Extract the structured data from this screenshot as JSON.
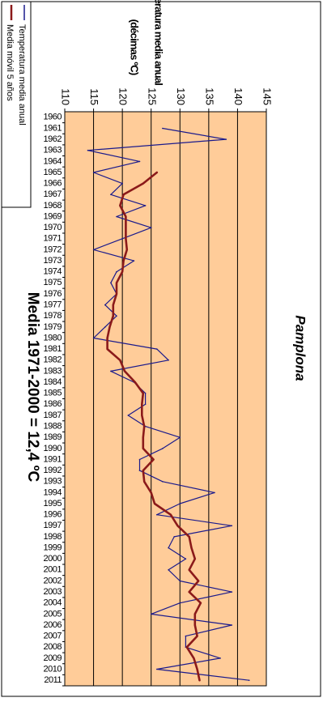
{
  "chart_data": {
    "type": "line",
    "title": "Temperatura media anual",
    "subtitle": "(décimas ºC)",
    "location_label": "Pamplona",
    "annotation": "Media 1971-2000 = 12,4 ºC",
    "xlabel": "",
    "ylabel": "",
    "ylim": [
      110,
      145
    ],
    "y_ticks": [
      110,
      115,
      120,
      125,
      130,
      135,
      140,
      145
    ],
    "grid": true,
    "orientation": "rotated-90-clockwise",
    "legend_position": "left",
    "colors": {
      "plot_background": "#ffcc99",
      "annual_series": "#1a1a8c",
      "moving_average_series": "#8b1a1a",
      "gridline": "#000000"
    },
    "categories": [
      "1960",
      "1961",
      "1962",
      "1963",
      "1964",
      "1965",
      "1966",
      "1967",
      "1968",
      "1969",
      "1970",
      "1971",
      "1972",
      "1973",
      "1974",
      "1975",
      "1976",
      "1977",
      "1978",
      "1979",
      "1980",
      "1981",
      "1982",
      "1983",
      "1984",
      "1985",
      "1986",
      "1987",
      "1988",
      "1989",
      "1990",
      "1991",
      "1992",
      "1993",
      "1994",
      "1995",
      "1996",
      "1997",
      "1998",
      "1999",
      "2000",
      "2001",
      "2002",
      "2003",
      "2004",
      "2005",
      "2006",
      "2007",
      "2008",
      "2009",
      "2010",
      "2011"
    ],
    "series": [
      {
        "name": "Temperatura media anual",
        "values": [
          null,
          127,
          138,
          114,
          123,
          115,
          120,
          118,
          124,
          119,
          125,
          120,
          115,
          122,
          119,
          118,
          119,
          117,
          119,
          117,
          115,
          126,
          128,
          118,
          122,
          124,
          124,
          121,
          124,
          130,
          127,
          123,
          123,
          127,
          136,
          130,
          126,
          139,
          129,
          128,
          131,
          128,
          130,
          139,
          130,
          125,
          139,
          131,
          131,
          137,
          126,
          142
        ]
      },
      {
        "name": "Media móvil 5 años",
        "values": [
          null,
          null,
          null,
          null,
          null,
          126,
          123.6,
          120.2,
          119.6,
          120.6,
          120.6,
          120.6,
          120.8,
          120.2,
          120.0,
          119.0,
          119.0,
          118.4,
          118.4,
          117.8,
          117.4,
          117.4,
          119.6,
          120.4,
          122.2,
          123.6,
          123.4,
          123.4,
          123.8,
          123.6,
          123.6,
          125.4,
          123.6,
          123.8,
          125.0,
          125.6,
          128.4,
          129.6,
          131.6,
          132.0,
          132.6,
          131.6,
          133.2,
          131.6,
          133.6,
          132.6,
          132.6,
          133.0,
          131.2,
          132.4,
          133.0,
          133.4
        ]
      }
    ]
  }
}
